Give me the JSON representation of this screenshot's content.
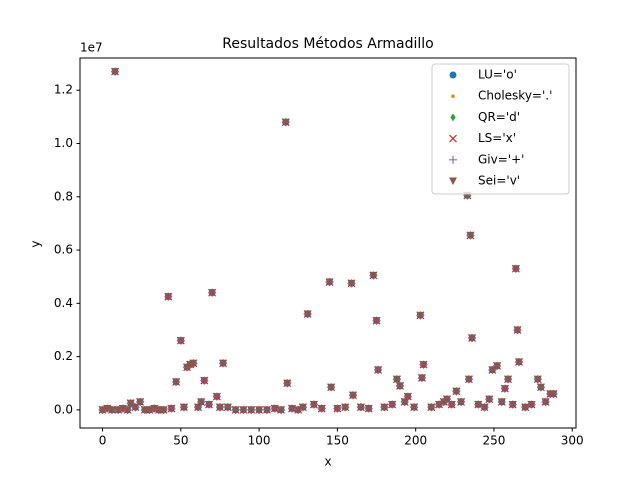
{
  "chart_data": {
    "type": "scatter",
    "title": "Resultados Métodos Armadillo",
    "x_label": "x",
    "y_label": "y",
    "y_offset_label": "1e7",
    "x": [
      0,
      3,
      6,
      8,
      10,
      13,
      16,
      18,
      21,
      24,
      27,
      30,
      33,
      36,
      39,
      42,
      44,
      47,
      50,
      52,
      54,
      56,
      58,
      61,
      63,
      65,
      68,
      70,
      73,
      75,
      77,
      80,
      85,
      90,
      95,
      100,
      105,
      110,
      114,
      117,
      118,
      121,
      125,
      128,
      131,
      135,
      140,
      145,
      146,
      150,
      155,
      159,
      160,
      165,
      170,
      173,
      175,
      176,
      180,
      185,
      188,
      190,
      193,
      195,
      199,
      203,
      204,
      205,
      210,
      215,
      218,
      220,
      223,
      226,
      229,
      233,
      234,
      235,
      236,
      240,
      244,
      247,
      249,
      252,
      255,
      257,
      259,
      262,
      264,
      265,
      266,
      270,
      274,
      278,
      280,
      283,
      286,
      288
    ],
    "series": [
      {
        "name": "LU='o'",
        "marker": "o",
        "color": "#1f77b4",
        "values": [
          0,
          0.005,
          0,
          1.27,
          0,
          0.005,
          0,
          0.025,
          0.01,
          0.03,
          0,
          0,
          0.005,
          0,
          0,
          0.425,
          0.005,
          0.105,
          0.26,
          0.01,
          0.16,
          0.17,
          0.175,
          0.01,
          0.03,
          0.11,
          0.02,
          0.44,
          0.05,
          0.01,
          0.175,
          0.01,
          0,
          0,
          0,
          0,
          0,
          0.005,
          0,
          1.08,
          0.1,
          0.005,
          0,
          0.01,
          0.36,
          0.02,
          0.005,
          0.48,
          0.085,
          0.005,
          0.01,
          0.475,
          0.055,
          0.01,
          0.005,
          0.505,
          0.335,
          0.15,
          0.01,
          0.02,
          0.115,
          0.09,
          0.03,
          0.05,
          0.01,
          0.355,
          0.12,
          0.17,
          0.01,
          0.02,
          0.03,
          0.04,
          0.02,
          0.07,
          0.03,
          0.805,
          0.115,
          0.655,
          0.27,
          0.02,
          0.01,
          0.04,
          0.15,
          0.165,
          0.03,
          0.08,
          0.115,
          0.02,
          0.53,
          0.3,
          0.18,
          0.01,
          0.02,
          0.115,
          0.085,
          0.03,
          0.06,
          0.06
        ]
      },
      {
        "name": "Cholesky='.'",
        "marker": ".",
        "color": "#ff7f0e",
        "values": [
          0,
          0.005,
          0,
          1.27,
          0,
          0.005,
          0,
          0.025,
          0.01,
          0.03,
          0,
          0,
          0.005,
          0,
          0,
          0.425,
          0.005,
          0.105,
          0.26,
          0.01,
          0.16,
          0.17,
          0.175,
          0.01,
          0.03,
          0.11,
          0.02,
          0.44,
          0.05,
          0.01,
          0.175,
          0.01,
          0,
          0,
          0,
          0,
          0,
          0.005,
          0,
          1.08,
          0.1,
          0.005,
          0,
          0.01,
          0.36,
          0.02,
          0.005,
          0.48,
          0.085,
          0.005,
          0.01,
          0.475,
          0.055,
          0.01,
          0.005,
          0.505,
          0.335,
          0.15,
          0.01,
          0.02,
          0.115,
          0.09,
          0.03,
          0.05,
          0.01,
          0.355,
          0.12,
          0.17,
          0.01,
          0.02,
          0.03,
          0.04,
          0.02,
          0.07,
          0.03,
          0.805,
          0.115,
          0.655,
          0.27,
          0.02,
          0.01,
          0.04,
          0.15,
          0.165,
          0.03,
          0.08,
          0.115,
          0.02,
          0.53,
          0.3,
          0.18,
          0.01,
          0.02,
          0.115,
          0.085,
          0.03,
          0.06,
          0.06
        ]
      },
      {
        "name": "QR='d'",
        "marker": "d",
        "color": "#2ca02c",
        "values": [
          0,
          0.005,
          0,
          1.27,
          0,
          0.005,
          0,
          0.025,
          0.01,
          0.03,
          0,
          0,
          0.005,
          0,
          0,
          0.425,
          0.005,
          0.105,
          0.26,
          0.01,
          0.16,
          0.17,
          0.175,
          0.01,
          0.03,
          0.11,
          0.02,
          0.44,
          0.05,
          0.01,
          0.175,
          0.01,
          0,
          0,
          0,
          0,
          0,
          0.005,
          0,
          1.08,
          0.1,
          0.005,
          0,
          0.01,
          0.36,
          0.02,
          0.005,
          0.48,
          0.085,
          0.005,
          0.01,
          0.475,
          0.055,
          0.01,
          0.005,
          0.505,
          0.335,
          0.15,
          0.01,
          0.02,
          0.115,
          0.09,
          0.03,
          0.05,
          0.01,
          0.355,
          0.12,
          0.17,
          0.01,
          0.02,
          0.03,
          0.04,
          0.02,
          0.07,
          0.03,
          0.805,
          0.115,
          0.655,
          0.27,
          0.02,
          0.01,
          0.04,
          0.15,
          0.165,
          0.03,
          0.08,
          0.115,
          0.02,
          0.53,
          0.3,
          0.18,
          0.01,
          0.02,
          0.115,
          0.085,
          0.03,
          0.06,
          0.06
        ]
      },
      {
        "name": "LS='x'",
        "marker": "x",
        "color": "#d62728",
        "values": [
          0,
          0.005,
          0,
          1.27,
          0,
          0.005,
          0,
          0.025,
          0.01,
          0.03,
          0,
          0,
          0.005,
          0,
          0,
          0.425,
          0.005,
          0.105,
          0.26,
          0.01,
          0.16,
          0.17,
          0.175,
          0.01,
          0.03,
          0.11,
          0.02,
          0.44,
          0.05,
          0.01,
          0.175,
          0.01,
          0,
          0,
          0,
          0,
          0,
          0.005,
          0,
          1.08,
          0.1,
          0.005,
          0,
          0.01,
          0.36,
          0.02,
          0.005,
          0.48,
          0.085,
          0.005,
          0.01,
          0.475,
          0.055,
          0.01,
          0.005,
          0.505,
          0.335,
          0.15,
          0.01,
          0.02,
          0.115,
          0.09,
          0.03,
          0.05,
          0.01,
          0.355,
          0.12,
          0.17,
          0.01,
          0.02,
          0.03,
          0.04,
          0.02,
          0.07,
          0.03,
          0.805,
          0.115,
          0.655,
          0.27,
          0.02,
          0.01,
          0.04,
          0.15,
          0.165,
          0.03,
          0.08,
          0.115,
          0.02,
          0.53,
          0.3,
          0.18,
          0.01,
          0.02,
          0.115,
          0.085,
          0.03,
          0.06,
          0.06
        ]
      },
      {
        "name": "Giv='+'",
        "marker": "+",
        "color": "#9467bd",
        "values": [
          0,
          0.005,
          0,
          1.27,
          0,
          0.005,
          0,
          0.025,
          0.01,
          0.03,
          0,
          0,
          0.005,
          0,
          0,
          0.425,
          0.005,
          0.105,
          0.26,
          0.01,
          0.16,
          0.17,
          0.175,
          0.01,
          0.03,
          0.11,
          0.02,
          0.44,
          0.05,
          0.01,
          0.175,
          0.01,
          0,
          0,
          0,
          0,
          0,
          0.005,
          0,
          1.08,
          0.1,
          0.005,
          0,
          0.01,
          0.36,
          0.02,
          0.005,
          0.48,
          0.085,
          0.005,
          0.01,
          0.475,
          0.055,
          0.01,
          0.005,
          0.505,
          0.335,
          0.15,
          0.01,
          0.02,
          0.115,
          0.09,
          0.03,
          0.05,
          0.01,
          0.355,
          0.12,
          0.17,
          0.01,
          0.02,
          0.03,
          0.04,
          0.02,
          0.07,
          0.03,
          0.805,
          0.115,
          0.655,
          0.27,
          0.02,
          0.01,
          0.04,
          0.15,
          0.165,
          0.03,
          0.08,
          0.115,
          0.02,
          0.53,
          0.3,
          0.18,
          0.01,
          0.02,
          0.115,
          0.085,
          0.03,
          0.06,
          0.06
        ]
      },
      {
        "name": "Sei='v'",
        "marker": "v",
        "color": "#8c564b",
        "values": [
          0,
          0.005,
          0,
          1.27,
          0,
          0.005,
          0,
          0.025,
          0.01,
          0.03,
          0,
          0,
          0.005,
          0,
          0,
          0.425,
          0.005,
          0.105,
          0.26,
          0.01,
          0.16,
          0.17,
          0.175,
          0.01,
          0.03,
          0.11,
          0.02,
          0.44,
          0.05,
          0.01,
          0.175,
          0.01,
          0,
          0,
          0,
          0,
          0,
          0.005,
          0,
          1.08,
          0.1,
          0.005,
          0,
          0.01,
          0.36,
          0.02,
          0.005,
          0.48,
          0.085,
          0.005,
          0.01,
          0.475,
          0.055,
          0.01,
          0.005,
          0.505,
          0.335,
          0.15,
          0.01,
          0.02,
          0.115,
          0.09,
          0.03,
          0.05,
          0.01,
          0.355,
          0.12,
          0.17,
          0.01,
          0.02,
          0.03,
          0.04,
          0.02,
          0.07,
          0.03,
          0.805,
          0.115,
          0.655,
          0.27,
          0.02,
          0.01,
          0.04,
          0.15,
          0.165,
          0.03,
          0.08,
          0.115,
          0.02,
          0.53,
          0.3,
          0.18,
          0.01,
          0.02,
          0.115,
          0.085,
          0.03,
          0.06,
          0.06
        ]
      }
    ],
    "xlim": [
      -14.4,
      302.4
    ],
    "xticks": [
      0,
      50,
      100,
      150,
      200,
      250,
      300
    ],
    "ylim": [
      -0.068,
      1.321
    ],
    "yticks": [
      {
        "value": 0,
        "label": "0.0"
      },
      0.2,
      0.4,
      0.6,
      0.8,
      {
        "value": 1,
        "label": "1.0"
      },
      1.2
    ],
    "grid": false,
    "legend": "upper right"
  }
}
